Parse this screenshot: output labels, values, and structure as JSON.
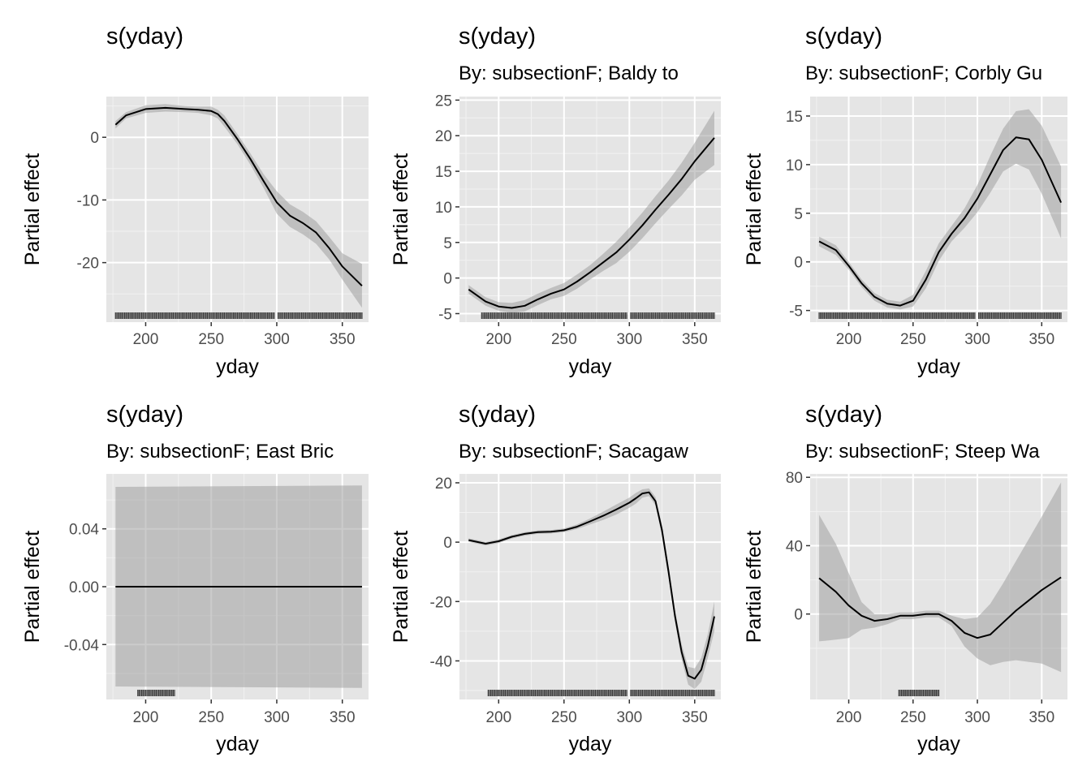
{
  "chart_data": [
    {
      "type": "line",
      "title": "s(yday)",
      "subtitle": "",
      "xlabel": "yday",
      "ylabel": "Partial effect",
      "xlim": [
        170,
        370
      ],
      "ylim": [
        -29.5,
        6.5
      ],
      "xticks": [
        200,
        250,
        300,
        350
      ],
      "yticks": [
        0,
        -10,
        -20
      ],
      "ytick_labels": [
        "0",
        "-10",
        "-20"
      ],
      "grid": true,
      "x": [
        177,
        185,
        200,
        215,
        230,
        240,
        250,
        255,
        260,
        270,
        280,
        290,
        300,
        310,
        320,
        330,
        340,
        350,
        365
      ],
      "y": [
        2,
        3.5,
        4.5,
        4.7,
        4.5,
        4.4,
        4.2,
        3.7,
        2.6,
        -0.3,
        -3.5,
        -7,
        -10.4,
        -12.5,
        -13.7,
        -15.2,
        -17.7,
        -20.6,
        -23.7
      ],
      "ci_upper": [
        2.6,
        4,
        5.1,
        5.3,
        5,
        4.9,
        4.9,
        4.4,
        3.5,
        0.5,
        -2.6,
        -5.9,
        -8.6,
        -10.7,
        -11.9,
        -13.4,
        -15.9,
        -18.5,
        -20.2
      ],
      "ci_lower": [
        1.4,
        3,
        3.9,
        4.1,
        4,
        3.9,
        3.5,
        3,
        1.7,
        -1.1,
        -4.4,
        -8.1,
        -12.2,
        -14.3,
        -15.5,
        -17,
        -19.5,
        -22.7,
        -27.2
      ],
      "rug": [
        [
          177,
          298
        ],
        [
          301,
          365
        ]
      ]
    },
    {
      "type": "line",
      "title": "s(yday)",
      "subtitle": "By: subsectionF; Baldy to",
      "xlabel": "yday",
      "ylabel": "Partial effect",
      "xlim": [
        170,
        370
      ],
      "ylim": [
        -6.2,
        25.5
      ],
      "xticks": [
        200,
        250,
        300,
        350
      ],
      "yticks": [
        25,
        20,
        15,
        10,
        5,
        0,
        -5
      ],
      "ytick_labels": [
        "25",
        "20",
        "15",
        "10",
        "5",
        "0",
        "-5"
      ],
      "grid": true,
      "x": [
        177,
        190,
        200,
        210,
        220,
        230,
        240,
        250,
        260,
        270,
        280,
        290,
        300,
        310,
        320,
        330,
        340,
        350,
        365
      ],
      "y": [
        -1.6,
        -3.3,
        -4,
        -4.2,
        -3.9,
        -3,
        -2.2,
        -1.6,
        -0.5,
        0.8,
        2.2,
        3.6,
        5.4,
        7.4,
        9.6,
        11.7,
        13.9,
        16.4,
        19.7
      ],
      "ci_upper": [
        -1,
        -2.7,
        -3.4,
        -3.5,
        -3.1,
        -2.2,
        -1.4,
        -0.7,
        0.5,
        1.8,
        3.4,
        5.1,
        7.1,
        9.2,
        11.5,
        13.7,
        16.2,
        19,
        23.5
      ],
      "ci_lower": [
        -2.2,
        -3.9,
        -4.6,
        -4.9,
        -4.7,
        -3.8,
        -3,
        -2.5,
        -1.5,
        -0.2,
        1,
        2.1,
        3.7,
        5.6,
        7.7,
        9.7,
        11.6,
        13.8,
        15.9
      ],
      "rug": [
        [
          187,
          298
        ],
        [
          301,
          365
        ]
      ]
    },
    {
      "type": "line",
      "title": "s(yday)",
      "subtitle": "By: subsectionF; Corbly Gu",
      "xlabel": "yday",
      "ylabel": "Partial effect",
      "xlim": [
        170,
        370
      ],
      "ylim": [
        -6.2,
        17
      ],
      "xticks": [
        200,
        250,
        300,
        350
      ],
      "yticks": [
        15,
        10,
        5,
        0,
        -5
      ],
      "ytick_labels": [
        "15",
        "10",
        "5",
        "0",
        "-5"
      ],
      "grid": true,
      "x": [
        177,
        190,
        200,
        210,
        220,
        230,
        240,
        250,
        260,
        270,
        280,
        290,
        300,
        310,
        320,
        330,
        340,
        350,
        365
      ],
      "y": [
        2.1,
        1.2,
        -0.4,
        -2.2,
        -3.6,
        -4.3,
        -4.5,
        -4,
        -1.8,
        1,
        2.9,
        4.5,
        6.5,
        9,
        11.5,
        12.8,
        12.6,
        10.5,
        6.1
      ],
      "ci_upper": [
        2.6,
        1.7,
        0,
        -1.8,
        -3.2,
        -3.9,
        -4.1,
        -3.4,
        -0.9,
        1.9,
        3.7,
        5.5,
        7.9,
        10.9,
        13.7,
        15.5,
        15.7,
        14,
        9.8
      ],
      "ci_lower": [
        1.6,
        0.7,
        -0.8,
        -2.6,
        -4,
        -4.7,
        -4.9,
        -4.6,
        -2.7,
        0.1,
        2.1,
        3.5,
        5.1,
        7.1,
        9.3,
        10.1,
        9.5,
        7,
        2.4
      ],
      "rug": [
        [
          177,
          298
        ],
        [
          301,
          365
        ]
      ]
    },
    {
      "type": "line",
      "title": "s(yday)",
      "subtitle": "By: subsectionF; East Bric",
      "xlabel": "yday",
      "ylabel": "Partial effect",
      "xlim": [
        170,
        370
      ],
      "ylim": [
        -0.078,
        0.078
      ],
      "xticks": [
        200,
        250,
        300,
        350
      ],
      "yticks": [
        0.04,
        0,
        -0.04
      ],
      "ytick_labels": [
        "0.04",
        "0.00",
        "-0.04"
      ],
      "grid": true,
      "x": [
        177,
        365
      ],
      "y": [
        0,
        0
      ],
      "ci_upper": [
        0.069,
        0.07
      ],
      "ci_lower": [
        -0.069,
        -0.07
      ],
      "rug": [
        [
          194,
          222
        ]
      ]
    },
    {
      "type": "line",
      "title": "s(yday)",
      "subtitle": "By: subsectionF; Sacagaw",
      "xlabel": "yday",
      "ylabel": "Partial effect",
      "xlim": [
        170,
        370
      ],
      "ylim": [
        -53,
        23
      ],
      "xticks": [
        200,
        250,
        300,
        350
      ],
      "yticks": [
        20,
        0,
        -20,
        -40
      ],
      "ytick_labels": [
        "20",
        "0",
        "-20",
        "-40"
      ],
      "grid": true,
      "x": [
        177,
        190,
        200,
        210,
        220,
        230,
        240,
        250,
        260,
        270,
        280,
        290,
        300,
        305,
        310,
        315,
        320,
        325,
        330,
        335,
        340,
        345,
        350,
        355,
        360,
        365
      ],
      "y": [
        0.7,
        -0.5,
        0.3,
        1.8,
        2.8,
        3.4,
        3.5,
        4,
        5.2,
        7,
        8.9,
        11,
        13.3,
        14.8,
        16.4,
        16.8,
        13.8,
        4,
        -10,
        -25,
        -37,
        -45,
        -46,
        -43,
        -35,
        -25
      ],
      "ci_upper": [
        1.3,
        0.1,
        0.9,
        2.4,
        3.4,
        4,
        4.1,
        4.6,
        6,
        8,
        10.3,
        12.7,
        15,
        16.6,
        17.8,
        18.1,
        15.2,
        5.8,
        -8,
        -23,
        -34.5,
        -42,
        -42.5,
        -39,
        -31,
        -20
      ],
      "ci_lower": [
        0.1,
        -1.1,
        -0.3,
        1.2,
        2.2,
        2.8,
        2.9,
        3.4,
        4.4,
        6,
        7.5,
        9.3,
        11.6,
        13,
        15,
        15.5,
        12.4,
        2.2,
        -12,
        -27,
        -39.5,
        -48,
        -49.5,
        -47,
        -39,
        -30
      ],
      "rug": [
        [
          192,
          298
        ],
        [
          301,
          365
        ]
      ]
    },
    {
      "type": "line",
      "title": "s(yday)",
      "subtitle": "By: subsectionF; Steep Wa",
      "xlabel": "yday",
      "ylabel": "Partial effect",
      "xlim": [
        170,
        370
      ],
      "ylim": [
        -50,
        82
      ],
      "xticks": [
        200,
        250,
        300,
        350
      ],
      "yticks": [
        80,
        40,
        0
      ],
      "ytick_labels": [
        "80",
        "40",
        "0"
      ],
      "grid": true,
      "x": [
        177,
        190,
        200,
        210,
        220,
        230,
        240,
        250,
        260,
        270,
        280,
        290,
        300,
        310,
        320,
        330,
        340,
        350,
        365
      ],
      "y": [
        21,
        13,
        5,
        -1,
        -4,
        -3,
        -1,
        -1,
        0,
        0,
        -4,
        -11,
        -14,
        -12,
        -5,
        2,
        8,
        14,
        21.5
      ],
      "ci_upper": [
        58,
        41,
        24,
        7,
        0,
        0,
        1,
        1,
        2,
        2,
        -1,
        -3,
        -2,
        6,
        18,
        31,
        44,
        57,
        77
      ],
      "ci_lower": [
        -16,
        -15,
        -14,
        -9,
        -8,
        -6,
        -3,
        -3,
        -2,
        -2,
        -7,
        -19,
        -26,
        -30,
        -28,
        -27,
        -28,
        -29,
        -34
      ],
      "rug": [
        [
          239,
          270
        ]
      ]
    }
  ]
}
